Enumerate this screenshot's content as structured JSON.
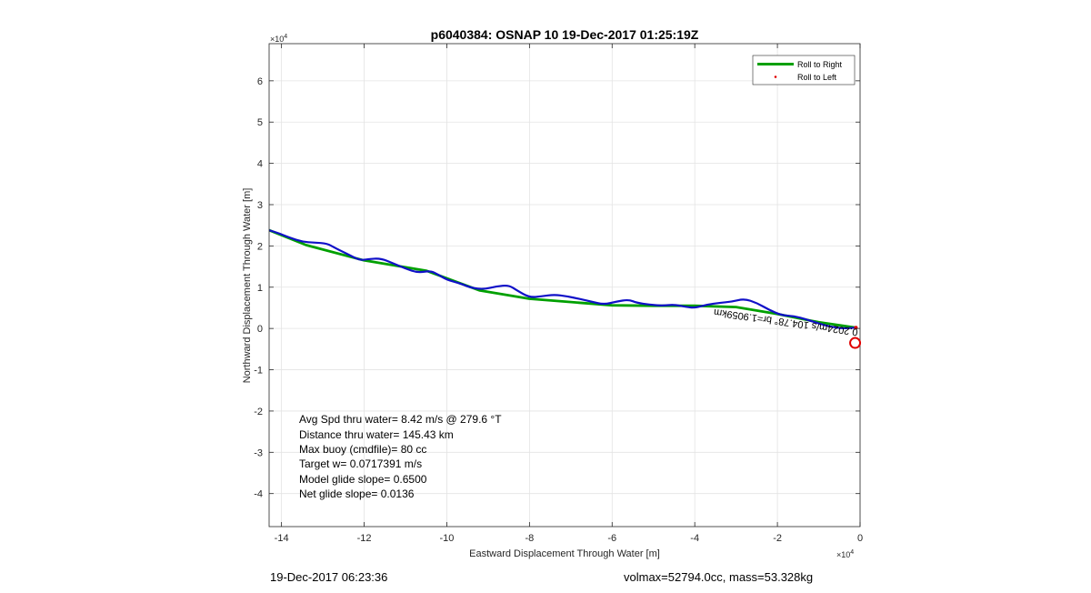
{
  "chart_data": {
    "type": "line",
    "title": "p6040384: OSNAP 10 19-Dec-2017 01:25:19Z",
    "xlabel": "Eastward Displacement Through Water [m]",
    "ylabel": "Northward Displacement Through Water [m]",
    "x_multiplier": "×10",
    "x_multiplier_exp": "4",
    "y_multiplier": "×10",
    "y_multiplier_exp": "4",
    "xlim": [
      -14.3,
      0
    ],
    "ylim": [
      -4.8,
      6.9
    ],
    "xticks": [
      -14,
      -12,
      -10,
      -8,
      -6,
      -4,
      -2,
      0
    ],
    "yticks": [
      -4,
      -3,
      -2,
      -1,
      0,
      1,
      2,
      3,
      4,
      5,
      6
    ],
    "grid": true,
    "legend_position": "top-right",
    "colors": {
      "roll_right": "#00a000",
      "roll_left": "#e00000",
      "track": "#1010c8",
      "endpoint_marker": "#e00000"
    },
    "series": [
      {
        "name": "Roll to Right",
        "style": "line",
        "x": [
          -14.3,
          -13.4,
          -12.0,
          -10.5,
          -9.2,
          -8.0,
          -6.0,
          -5.0,
          -4.0,
          -3.0,
          -2.0,
          -1.0,
          -0.1
        ],
        "y": [
          2.38,
          2.02,
          1.65,
          1.4,
          0.92,
          0.72,
          0.56,
          0.55,
          0.55,
          0.52,
          0.35,
          0.15,
          0.02
        ]
      },
      {
        "name": "Roll to Left",
        "style": "point",
        "x": [
          -0.1
        ],
        "y": [
          0.02
        ]
      },
      {
        "name": "",
        "style": "track",
        "x": [
          -14.3,
          -14.1,
          -13.8,
          -13.5,
          -13.2,
          -12.9,
          -12.7,
          -12.4,
          -12.1,
          -11.9,
          -11.6,
          -11.3,
          -11.0,
          -10.7,
          -10.4,
          -10.2,
          -10.0,
          -9.7,
          -9.4,
          -9.1,
          -8.8,
          -8.5,
          -8.3,
          -8.0,
          -7.7,
          -7.4,
          -7.1,
          -6.8,
          -6.5,
          -6.2,
          -5.9,
          -5.6,
          -5.4,
          -5.1,
          -4.8,
          -4.5,
          -4.2,
          -4.0,
          -3.7,
          -3.4,
          -3.1,
          -2.8,
          -2.5,
          -2.2,
          -1.9,
          -1.6,
          -1.3,
          -1.0,
          -0.7,
          -0.4,
          -0.1
        ],
        "y": [
          2.38,
          2.32,
          2.2,
          2.1,
          2.08,
          2.06,
          1.95,
          1.8,
          1.65,
          1.68,
          1.7,
          1.58,
          1.45,
          1.35,
          1.4,
          1.3,
          1.18,
          1.1,
          0.98,
          0.95,
          1.02,
          1.05,
          0.92,
          0.75,
          0.78,
          0.82,
          0.78,
          0.72,
          0.65,
          0.58,
          0.65,
          0.7,
          0.62,
          0.58,
          0.55,
          0.58,
          0.52,
          0.5,
          0.58,
          0.62,
          0.65,
          0.72,
          0.62,
          0.45,
          0.32,
          0.3,
          0.22,
          0.12,
          0.04,
          0.0,
          0.02
        ]
      }
    ],
    "endpoint": {
      "x": -0.12,
      "y": -0.35
    },
    "annotations": {
      "track_label": "0.2024m/s 104.78° br=1.9059km",
      "summary": [
        "Avg Spd thru water=  8.42 m/s @ 279.6 °T",
        "Distance thru water= 145.43 km",
        "Max buoy (cmdfile)= 80 cc",
        "Target w= 0.0717391 m/s",
        "Model glide slope= 0.6500",
        "Net glide slope= 0.0136"
      ]
    }
  },
  "footer": {
    "left": "19-Dec-2017 06:23:36",
    "right": "volmax=52794.0cc, mass=53.328kg"
  }
}
